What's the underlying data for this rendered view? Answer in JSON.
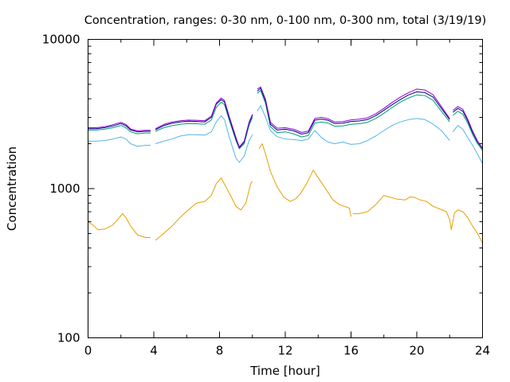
{
  "chart_data": {
    "type": "line",
    "title": "Concentration, ranges: 0-30 nm, 0-100 nm, 0-300 nm, total (3/19/19)",
    "xlabel": "Time [hour]",
    "ylabel": "Concentration",
    "xlim": [
      0,
      24
    ],
    "ylim": [
      100,
      10000
    ],
    "yscale": "log",
    "grid": false,
    "legend": "none",
    "x_ticks": [
      "0",
      "4",
      "8",
      "12",
      "16",
      "20",
      "24"
    ],
    "x_minor_ticks": [
      2,
      6,
      10,
      14,
      18,
      22
    ],
    "y_ticks": [
      "100",
      "1000",
      "10000"
    ],
    "series": [
      {
        "color": "#e69f00",
        "x": [
          0.0,
          0.3,
          0.6,
          1.0,
          1.5,
          1.8,
          2.1,
          2.3,
          2.6,
          3.0,
          3.5,
          3.8,
          null,
          4.1,
          4.6,
          5.1,
          5.6,
          6.1,
          6.6,
          7.1,
          7.5,
          7.8,
          8.1,
          8.3,
          8.6,
          9.0,
          9.3,
          9.6,
          9.9,
          10.0,
          null,
          10.4,
          10.6,
          10.8,
          11.1,
          11.5,
          11.9,
          12.3,
          12.6,
          12.9,
          13.3,
          13.7,
          14.1,
          14.5,
          14.9,
          15.3,
          15.6,
          15.9,
          16.0,
          null,
          16.1,
          16.5,
          17.0,
          17.5,
          18.0,
          18.3,
          18.8,
          19.3,
          19.6,
          19.9,
          20.2,
          20.6,
          21.0,
          21.4,
          21.8,
          22.0,
          22.1,
          22.3,
          22.5,
          22.8,
          23.1,
          23.4,
          23.7,
          24.0
        ],
        "y": [
          600,
          570,
          530,
          535,
          570,
          620,
          680,
          640,
          560,
          490,
          470,
          470,
          null,
          450,
          500,
          560,
          640,
          720,
          800,
          820,
          900,
          1080,
          1180,
          1070,
          930,
          760,
          720,
          800,
          1080,
          1120,
          null,
          1850,
          2000,
          1700,
          1300,
          1030,
          880,
          820,
          850,
          920,
          1080,
          1330,
          1140,
          980,
          840,
          780,
          760,
          740,
          650,
          null,
          680,
          680,
          700,
          780,
          900,
          880,
          850,
          840,
          880,
          870,
          840,
          820,
          760,
          730,
          700,
          620,
          530,
          690,
          720,
          700,
          640,
          560,
          500,
          430
        ]
      },
      {
        "color": "#56b4e9",
        "x": [
          0.0,
          0.5,
          1.0,
          1.5,
          2.0,
          2.3,
          2.6,
          3.0,
          3.5,
          3.8,
          null,
          4.1,
          4.6,
          5.1,
          5.6,
          6.1,
          6.6,
          7.1,
          7.5,
          7.8,
          8.1,
          8.3,
          8.6,
          9.0,
          9.2,
          9.5,
          9.8,
          10.0,
          null,
          10.3,
          10.5,
          10.8,
          11.1,
          11.5,
          12.0,
          12.5,
          13.0,
          13.4,
          13.8,
          14.2,
          14.6,
          15.0,
          15.5,
          16.0,
          16.5,
          17.0,
          17.5,
          18.0,
          18.5,
          19.0,
          19.5,
          20.0,
          20.5,
          21.0,
          21.5,
          22.0,
          null,
          22.2,
          22.5,
          22.8,
          23.1,
          23.4,
          23.7,
          24.0
        ],
        "y": [
          2080,
          2080,
          2100,
          2150,
          2220,
          2150,
          2000,
          1920,
          1950,
          1950,
          null,
          2000,
          2080,
          2150,
          2250,
          2300,
          2300,
          2280,
          2400,
          2800,
          3080,
          2900,
          2200,
          1600,
          1500,
          1650,
          2100,
          2300,
          null,
          3300,
          3600,
          3000,
          2450,
          2230,
          2150,
          2130,
          2100,
          2150,
          2450,
          2200,
          2050,
          2000,
          2050,
          1980,
          2000,
          2100,
          2250,
          2450,
          2650,
          2800,
          2900,
          2950,
          2900,
          2700,
          2450,
          2100,
          null,
          2400,
          2650,
          2500,
          2200,
          1950,
          1700,
          1470
        ]
      },
      {
        "color": "#009e73",
        "x": [
          0.0,
          0.5,
          1.0,
          1.5,
          2.0,
          2.3,
          2.6,
          3.0,
          3.5,
          3.8,
          null,
          4.1,
          4.6,
          5.1,
          5.6,
          6.1,
          6.6,
          7.1,
          7.5,
          7.8,
          8.1,
          8.3,
          8.6,
          9.0,
          9.2,
          9.5,
          9.8,
          10.0,
          null,
          10.3,
          10.5,
          10.8,
          11.1,
          11.5,
          12.0,
          12.5,
          13.0,
          13.4,
          13.8,
          14.2,
          14.6,
          15.0,
          15.5,
          16.0,
          16.5,
          17.0,
          17.5,
          18.0,
          18.5,
          19.0,
          19.5,
          20.0,
          20.5,
          21.0,
          21.5,
          22.0,
          null,
          22.2,
          22.5,
          22.8,
          23.1,
          23.4,
          23.7,
          24.0
        ],
        "y": [
          2470,
          2470,
          2500,
          2560,
          2650,
          2560,
          2400,
          2330,
          2360,
          2360,
          null,
          2420,
          2560,
          2640,
          2700,
          2730,
          2720,
          2700,
          2880,
          3500,
          3800,
          3650,
          2850,
          2100,
          1850,
          2000,
          2650,
          3000,
          null,
          4350,
          4550,
          3700,
          2600,
          2370,
          2400,
          2330,
          2220,
          2270,
          2750,
          2800,
          2750,
          2620,
          2630,
          2700,
          2720,
          2780,
          2950,
          3200,
          3500,
          3800,
          4050,
          4250,
          4200,
          3900,
          3300,
          2800,
          null,
          3100,
          3300,
          3150,
          2750,
          2300,
          2000,
          1800
        ]
      },
      {
        "color": "#000080",
        "x": [
          0.0,
          0.5,
          1.0,
          1.5,
          2.0,
          2.3,
          2.6,
          3.0,
          3.5,
          3.8,
          null,
          4.1,
          4.6,
          5.1,
          5.6,
          6.1,
          6.6,
          7.1,
          7.5,
          7.8,
          8.1,
          8.3,
          8.6,
          9.0,
          9.2,
          9.5,
          9.8,
          10.0,
          null,
          10.3,
          10.5,
          10.8,
          11.1,
          11.5,
          12.0,
          12.5,
          13.0,
          13.4,
          13.8,
          14.2,
          14.6,
          15.0,
          15.5,
          16.0,
          16.5,
          17.0,
          17.5,
          18.0,
          18.5,
          19.0,
          19.5,
          20.0,
          20.5,
          21.0,
          21.5,
          22.0,
          null,
          22.2,
          22.5,
          22.8,
          23.1,
          23.4,
          23.7,
          24.0
        ],
        "y": [
          2520,
          2520,
          2560,
          2630,
          2730,
          2640,
          2470,
          2400,
          2420,
          2420,
          null,
          2480,
          2640,
          2740,
          2800,
          2830,
          2820,
          2800,
          3000,
          3680,
          3950,
          3800,
          2950,
          2150,
          1880,
          2050,
          2750,
          3100,
          null,
          4500,
          4700,
          3850,
          2700,
          2470,
          2500,
          2440,
          2320,
          2370,
          2880,
          2920,
          2870,
          2730,
          2740,
          2820,
          2840,
          2900,
          3080,
          3350,
          3650,
          3950,
          4250,
          4450,
          4400,
          4100,
          3450,
          2900,
          null,
          3250,
          3450,
          3300,
          2850,
          2380,
          2050,
          1850
        ]
      },
      {
        "color": "#9400d3",
        "x": [
          0.0,
          0.5,
          1.0,
          1.5,
          2.0,
          2.3,
          2.6,
          3.0,
          3.5,
          3.8,
          null,
          4.1,
          4.6,
          5.1,
          5.6,
          6.1,
          6.6,
          7.1,
          7.5,
          7.8,
          8.1,
          8.3,
          8.6,
          9.0,
          9.2,
          9.5,
          9.8,
          10.0,
          null,
          10.3,
          10.5,
          10.8,
          11.1,
          11.5,
          12.0,
          12.5,
          13.0,
          13.4,
          13.8,
          14.2,
          14.6,
          15.0,
          15.5,
          16.0,
          16.5,
          17.0,
          17.5,
          18.0,
          18.5,
          19.0,
          19.5,
          20.0,
          20.5,
          21.0,
          21.5,
          22.0,
          null,
          22.2,
          22.5,
          22.8,
          23.1,
          23.4,
          23.7,
          24.0
        ],
        "y": [
          2560,
          2560,
          2600,
          2680,
          2780,
          2690,
          2510,
          2440,
          2460,
          2460,
          null,
          2520,
          2690,
          2790,
          2850,
          2880,
          2870,
          2850,
          3060,
          3750,
          4050,
          3900,
          3020,
          2200,
          1900,
          2080,
          2800,
          3150,
          null,
          4650,
          4800,
          3950,
          2780,
          2540,
          2560,
          2500,
          2380,
          2430,
          2950,
          3000,
          2940,
          2800,
          2810,
          2890,
          2920,
          2980,
          3170,
          3450,
          3780,
          4100,
          4400,
          4650,
          4580,
          4250,
          3550,
          2950,
          null,
          3350,
          3550,
          3400,
          2920,
          2430,
          2080,
          1870
        ]
      }
    ]
  }
}
